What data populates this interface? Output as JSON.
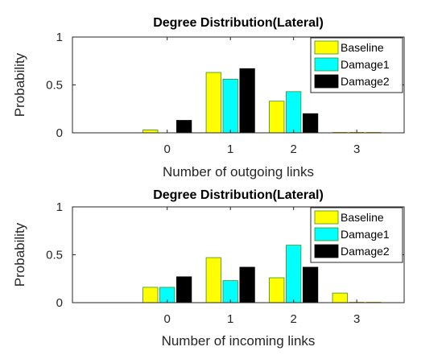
{
  "chart_data": [
    {
      "type": "bar",
      "title": "Degree Distribution(Lateral)",
      "xlabel": "Number of outgoing links",
      "ylabel": "Probability",
      "categories": [
        "0",
        "1",
        "2",
        "3"
      ],
      "ylim": [
        0,
        1
      ],
      "yticks": [
        "0",
        "0.5",
        "1"
      ],
      "legend_position": "top-right",
      "series": [
        {
          "name": "Baseline",
          "color": "#ffff00",
          "values": [
            0.03,
            0.63,
            0.33,
            0.0
          ]
        },
        {
          "name": "Damage1",
          "color": "#00ffff",
          "values": [
            0.0,
            0.56,
            0.43,
            0.0
          ]
        },
        {
          "name": "Damage2",
          "color": "#000000",
          "values": [
            0.13,
            0.67,
            0.2,
            0.0
          ]
        }
      ]
    },
    {
      "type": "bar",
      "title": "Degree Distribution(Lateral)",
      "xlabel": "Number of incoming links",
      "ylabel": "Probability",
      "categories": [
        "0",
        "1",
        "2",
        "3"
      ],
      "ylim": [
        0,
        1
      ],
      "yticks": [
        "0",
        "0.5",
        "1"
      ],
      "legend_position": "top-right",
      "series": [
        {
          "name": "Baseline",
          "color": "#ffff00",
          "values": [
            0.16,
            0.47,
            0.26,
            0.1
          ]
        },
        {
          "name": "Damage1",
          "color": "#00ffff",
          "values": [
            0.16,
            0.23,
            0.6,
            0.0
          ]
        },
        {
          "name": "Damage2",
          "color": "#000000",
          "values": [
            0.27,
            0.37,
            0.37,
            0.0
          ]
        }
      ]
    }
  ]
}
